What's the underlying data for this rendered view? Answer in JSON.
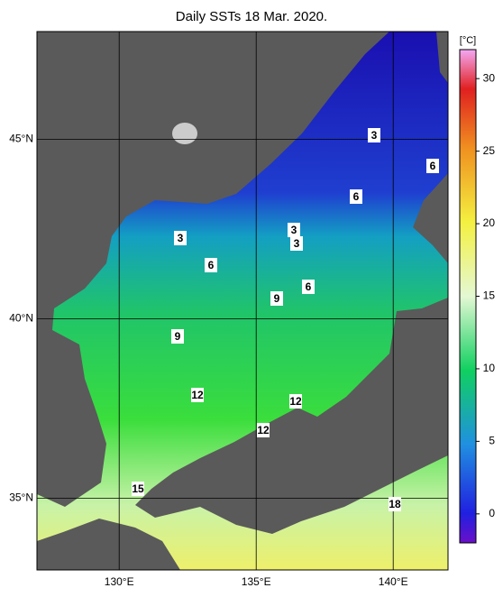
{
  "title": "Daily SSTs 18 Mar. 2020.",
  "map": {
    "xlim": [
      127,
      142
    ],
    "ylim": [
      33,
      48
    ],
    "xticks": [
      {
        "value": 130,
        "label": "130°E"
      },
      {
        "value": 135,
        "label": "135°E"
      },
      {
        "value": 140,
        "label": "140°E"
      }
    ],
    "yticks": [
      {
        "value": 35,
        "label": "35°N"
      },
      {
        "value": 40,
        "label": "40°N"
      },
      {
        "value": 45,
        "label": "45°N"
      }
    ],
    "grid": true,
    "contour_labels": [
      3,
      3,
      3,
      3,
      6,
      6,
      6,
      6,
      9,
      9,
      12,
      12,
      12,
      15,
      18
    ]
  },
  "colorbar": {
    "unit": "[°C]",
    "lim": [
      -2,
      32
    ],
    "ticks": [
      0,
      5,
      10,
      15,
      20,
      25,
      30
    ]
  }
}
